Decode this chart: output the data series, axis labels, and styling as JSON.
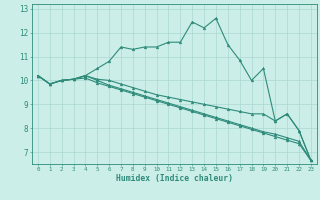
{
  "x": [
    0,
    1,
    2,
    3,
    4,
    5,
    6,
    7,
    8,
    9,
    10,
    11,
    12,
    13,
    14,
    15,
    16,
    17,
    18,
    19,
    20,
    21,
    22,
    23
  ],
  "curve1": [
    10.2,
    9.85,
    10.0,
    10.05,
    10.2,
    10.5,
    10.8,
    11.4,
    11.3,
    11.4,
    11.4,
    11.6,
    11.6,
    12.45,
    12.2,
    12.6,
    11.5,
    10.85,
    10.0,
    10.5,
    8.3,
    8.6,
    7.9,
    6.65
  ],
  "curve2": [
    10.2,
    9.85,
    10.0,
    10.05,
    10.2,
    10.05,
    10.0,
    9.85,
    9.7,
    9.55,
    9.4,
    9.3,
    9.2,
    9.1,
    9.0,
    8.9,
    8.8,
    8.7,
    8.6,
    8.6,
    8.3,
    8.6,
    7.9,
    6.65
  ],
  "curve3": [
    10.2,
    9.85,
    10.0,
    10.05,
    10.2,
    10.0,
    9.8,
    9.65,
    9.5,
    9.35,
    9.2,
    9.05,
    8.9,
    8.75,
    8.6,
    8.45,
    8.3,
    8.15,
    8.0,
    7.85,
    7.75,
    7.6,
    7.45,
    6.65
  ],
  "curve4": [
    10.2,
    9.85,
    10.0,
    10.05,
    10.1,
    9.9,
    9.75,
    9.6,
    9.45,
    9.3,
    9.15,
    9.0,
    8.85,
    8.7,
    8.55,
    8.4,
    8.25,
    8.1,
    7.95,
    7.8,
    7.65,
    7.5,
    7.35,
    6.65
  ],
  "line_color": "#2e8b7a",
  "bg_color": "#cceee8",
  "grid_color": "#aad8d0",
  "xlabel": "Humidex (Indice chaleur)",
  "xlim": [
    -0.5,
    23.5
  ],
  "ylim": [
    6.5,
    13.2
  ],
  "yticks": [
    7,
    8,
    9,
    10,
    11,
    12,
    13
  ],
  "xticks": [
    0,
    1,
    2,
    3,
    4,
    5,
    6,
    7,
    8,
    9,
    10,
    11,
    12,
    13,
    14,
    15,
    16,
    17,
    18,
    19,
    20,
    21,
    22,
    23
  ]
}
